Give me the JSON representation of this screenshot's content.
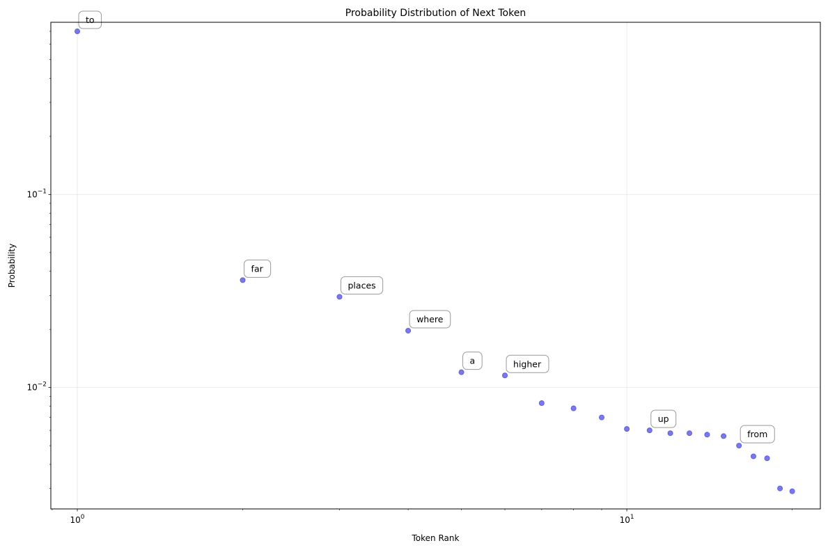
{
  "chart_data": {
    "type": "scatter",
    "title": "Probability Distribution of Next Token",
    "xlabel": "Token Rank",
    "ylabel": "Probability",
    "xscale": "log",
    "yscale": "log",
    "xlim": [
      0.895,
      22.5
    ],
    "ylim": [
      0.00235,
      0.78
    ],
    "grid": true,
    "marker_color": "#4040e0",
    "x_ticks": [
      {
        "value": 1,
        "base": "10",
        "exp": "0"
      },
      {
        "value": 10,
        "base": "10",
        "exp": "1"
      }
    ],
    "y_ticks": [
      {
        "value": 0.1,
        "base": "10",
        "exp": "−1"
      },
      {
        "value": 0.01,
        "base": "10",
        "exp": "−2"
      }
    ],
    "points": [
      {
        "x": 1,
        "y": 0.7,
        "label": "to"
      },
      {
        "x": 2,
        "y": 0.036,
        "label": "far"
      },
      {
        "x": 3,
        "y": 0.0295,
        "label": "places"
      },
      {
        "x": 4,
        "y": 0.0197,
        "label": "where"
      },
      {
        "x": 5,
        "y": 0.012,
        "label": "a"
      },
      {
        "x": 6,
        "y": 0.01155,
        "label": "higher"
      },
      {
        "x": 7,
        "y": 0.0083,
        "label": ""
      },
      {
        "x": 8,
        "y": 0.0078,
        "label": ""
      },
      {
        "x": 9,
        "y": 0.007,
        "label": ""
      },
      {
        "x": 10,
        "y": 0.0061,
        "label": ""
      },
      {
        "x": 11,
        "y": 0.006,
        "label": "up"
      },
      {
        "x": 12,
        "y": 0.0058,
        "label": ""
      },
      {
        "x": 13,
        "y": 0.0058,
        "label": ""
      },
      {
        "x": 14,
        "y": 0.0057,
        "label": ""
      },
      {
        "x": 15,
        "y": 0.0056,
        "label": ""
      },
      {
        "x": 16,
        "y": 0.005,
        "label": "from"
      },
      {
        "x": 17,
        "y": 0.0044,
        "label": ""
      },
      {
        "x": 18,
        "y": 0.0043,
        "label": ""
      },
      {
        "x": 19,
        "y": 0.003,
        "label": ""
      },
      {
        "x": 20,
        "y": 0.0029,
        "label": ""
      }
    ]
  }
}
